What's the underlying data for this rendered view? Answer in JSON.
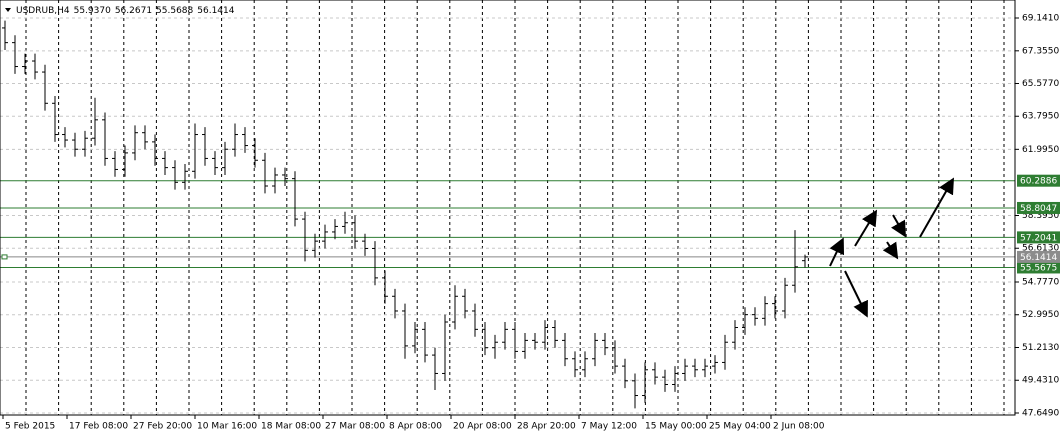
{
  "chart_data": {
    "type": "ohlc",
    "symbol": "USDRUB,H4",
    "last_bar_labels": [
      "55.9370",
      "56.2671",
      "55.5688",
      "56.1414"
    ],
    "ylim": [
      47.54,
      70.12
    ],
    "yticks": [
      {
        "value": 69.141,
        "label": "69.1410"
      },
      {
        "value": 67.355,
        "label": "67.3550"
      },
      {
        "value": 65.577,
        "label": "65.5770"
      },
      {
        "value": 63.795,
        "label": "63.7950"
      },
      {
        "value": 61.995,
        "label": "61.9950"
      },
      {
        "value": 58.395,
        "label": "58.3950"
      },
      {
        "value": 56.613,
        "label": "56.6130"
      },
      {
        "value": 54.777,
        "label": "54.7770"
      },
      {
        "value": 52.995,
        "label": "52.9950"
      },
      {
        "value": 51.213,
        "label": "51.2130"
      },
      {
        "value": 49.431,
        "label": "49.4310"
      },
      {
        "value": 47.649,
        "label": "47.6490"
      }
    ],
    "x_labels": [
      "5 Feb 2015",
      "17 Feb 08:00",
      "27 Feb 20:00",
      "10 Mar 16:00",
      "18 Mar 08:00",
      "27 Mar 08:00",
      "8 Apr 08:00",
      "20 Apr 08:00",
      "28 Apr 20:00",
      "7 May 12:00",
      "15 May 00:00",
      "25 May 04:00",
      "2 Jun 08:00"
    ],
    "levels": [
      {
        "value": 60.2886,
        "label": "60.2886"
      },
      {
        "value": 58.8047,
        "label": "58.8047"
      },
      {
        "value": 57.2041,
        "label": "57.2041"
      },
      {
        "value": 55.5675,
        "label": "55.5675"
      }
    ],
    "level_color": "#2e7d32",
    "current_price": {
      "value": 56.1414,
      "label": "56.1414"
    },
    "bar_color": "#000000",
    "grid": true,
    "bars": [
      [
        68.6,
        69.0,
        67.4,
        67.8
      ],
      [
        67.8,
        68.2,
        66.1,
        66.5
      ],
      [
        66.5,
        67.2,
        66.1,
        66.8
      ],
      [
        66.8,
        67.2,
        65.8,
        66.2
      ],
      [
        66.2,
        66.6,
        64.1,
        64.5
      ],
      [
        64.5,
        64.9,
        62.4,
        62.8
      ],
      [
        62.8,
        63.2,
        62.1,
        62.5
      ],
      [
        62.5,
        62.9,
        61.6,
        62.0
      ],
      [
        62.0,
        63.0,
        61.6,
        62.6
      ],
      [
        62.6,
        64.8,
        62.2,
        63.6
      ],
      [
        63.6,
        64.0,
        61.1,
        61.5
      ],
      [
        61.5,
        61.9,
        60.5,
        60.9
      ],
      [
        60.9,
        62.2,
        60.5,
        61.8
      ],
      [
        61.8,
        63.3,
        61.4,
        62.9
      ],
      [
        62.9,
        63.3,
        62.0,
        62.4
      ],
      [
        62.4,
        62.8,
        61.1,
        61.5
      ],
      [
        61.5,
        61.9,
        60.6,
        61.0
      ],
      [
        61.0,
        61.4,
        59.8,
        60.2
      ],
      [
        60.2,
        61.2,
        59.8,
        60.8
      ],
      [
        60.8,
        63.4,
        60.4,
        62.8
      ],
      [
        62.8,
        63.2,
        61.1,
        61.5
      ],
      [
        61.5,
        61.9,
        60.6,
        61.0
      ],
      [
        61.0,
        62.4,
        60.6,
        62.0
      ],
      [
        62.0,
        63.4,
        61.6,
        62.8
      ],
      [
        62.8,
        63.2,
        61.8,
        62.2
      ],
      [
        62.2,
        62.6,
        61.0,
        61.4
      ],
      [
        61.4,
        61.8,
        59.6,
        60.0
      ],
      [
        60.0,
        61.0,
        59.6,
        60.6
      ],
      [
        60.6,
        61.0,
        60.0,
        60.4
      ],
      [
        60.4,
        60.8,
        57.8,
        58.2
      ],
      [
        58.2,
        58.6,
        55.9,
        56.5
      ],
      [
        56.5,
        57.4,
        56.1,
        57.0
      ],
      [
        57.0,
        57.9,
        56.6,
        57.5
      ],
      [
        57.5,
        58.2,
        57.1,
        57.8
      ],
      [
        57.8,
        58.6,
        57.4,
        58.0
      ],
      [
        58.0,
        58.4,
        56.6,
        57.0
      ],
      [
        57.0,
        57.4,
        56.2,
        56.6
      ],
      [
        56.6,
        57.0,
        54.6,
        55.0
      ],
      [
        55.0,
        55.4,
        53.6,
        54.0
      ],
      [
        54.0,
        54.4,
        52.8,
        53.2
      ],
      [
        53.2,
        53.6,
        50.6,
        51.3
      ],
      [
        51.3,
        52.6,
        50.9,
        52.2
      ],
      [
        52.2,
        52.6,
        50.4,
        50.8
      ],
      [
        50.8,
        51.2,
        48.9,
        49.8
      ],
      [
        49.8,
        53.0,
        49.4,
        52.6
      ],
      [
        52.6,
        54.6,
        52.2,
        54.0
      ],
      [
        54.0,
        54.4,
        52.8,
        53.2
      ],
      [
        53.2,
        53.6,
        51.8,
        52.2
      ],
      [
        52.2,
        52.6,
        50.8,
        51.2
      ],
      [
        51.2,
        51.9,
        50.6,
        51.5
      ],
      [
        51.5,
        52.6,
        51.1,
        52.2
      ],
      [
        52.2,
        52.6,
        50.6,
        51.0
      ],
      [
        51.0,
        52.0,
        50.6,
        51.6
      ],
      [
        51.6,
        52.0,
        51.1,
        51.5
      ],
      [
        51.5,
        52.7,
        51.1,
        52.3
      ],
      [
        52.3,
        52.7,
        51.2,
        51.6
      ],
      [
        51.6,
        52.0,
        50.2,
        50.6
      ],
      [
        50.6,
        51.0,
        49.6,
        50.0
      ],
      [
        50.0,
        51.0,
        49.6,
        50.6
      ],
      [
        50.6,
        52.0,
        50.2,
        51.6
      ],
      [
        51.6,
        52.0,
        50.8,
        51.2
      ],
      [
        51.2,
        51.6,
        49.8,
        50.2
      ],
      [
        50.2,
        50.6,
        49.0,
        49.4
      ],
      [
        49.4,
        49.8,
        47.9,
        48.6
      ],
      [
        48.6,
        50.4,
        48.2,
        50.0
      ],
      [
        50.0,
        50.4,
        49.2,
        49.6
      ],
      [
        49.6,
        50.0,
        48.8,
        49.2
      ],
      [
        49.2,
        50.2,
        48.8,
        49.8
      ],
      [
        49.8,
        50.6,
        49.4,
        50.2
      ],
      [
        50.2,
        50.6,
        49.6,
        50.0
      ],
      [
        50.0,
        50.6,
        49.6,
        50.2
      ],
      [
        50.2,
        50.8,
        49.8,
        50.4
      ],
      [
        50.4,
        51.9,
        50.0,
        51.5
      ],
      [
        51.5,
        52.7,
        51.1,
        52.3
      ],
      [
        52.3,
        53.4,
        51.9,
        53.0
      ],
      [
        53.0,
        53.4,
        52.4,
        52.8
      ],
      [
        52.8,
        54.0,
        52.4,
        53.6
      ],
      [
        53.6,
        54.0,
        52.8,
        53.2
      ],
      [
        53.2,
        55.0,
        52.8,
        54.6
      ],
      [
        54.6,
        57.6,
        54.2,
        55.6
      ],
      [
        55.937,
        56.2671,
        55.5688,
        56.1414
      ]
    ]
  }
}
